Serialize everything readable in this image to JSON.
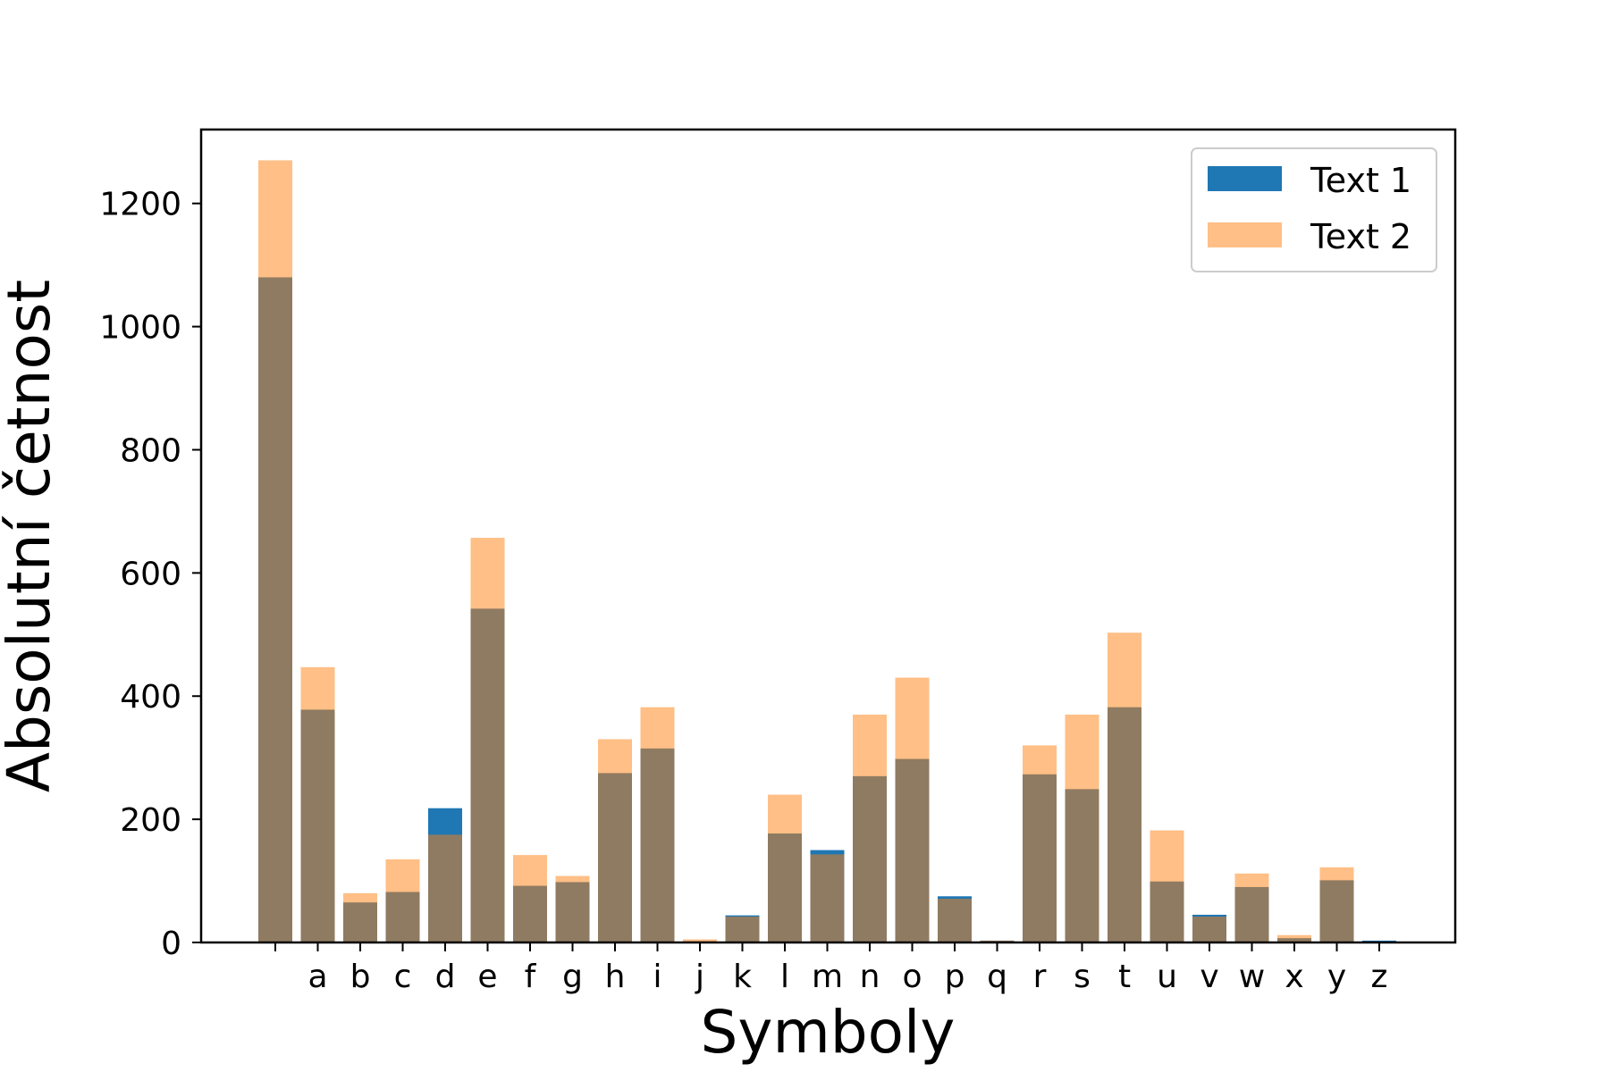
{
  "chart_data": {
    "type": "bar",
    "categories": [
      " ",
      "a",
      "b",
      "c",
      "d",
      "e",
      "f",
      "g",
      "h",
      "i",
      "j",
      "k",
      "l",
      "m",
      "n",
      "o",
      "p",
      "q",
      "r",
      "s",
      "t",
      "u",
      "v",
      "w",
      "x",
      "y",
      "z"
    ],
    "series": [
      {
        "name": "Text 1",
        "color": "#1f77b4",
        "opacity": 1,
        "values": [
          1080,
          378,
          65,
          82,
          218,
          542,
          92,
          98,
          275,
          315,
          2,
          44,
          177,
          150,
          270,
          298,
          75,
          3,
          273,
          249,
          382,
          99,
          45,
          90,
          7,
          101,
          3
        ]
      },
      {
        "name": "Text 2",
        "color": "#ff7f0e",
        "opacity": 0.5,
        "values": [
          1270,
          447,
          80,
          135,
          175,
          657,
          142,
          108,
          330,
          382,
          5,
          42,
          240,
          143,
          370,
          430,
          71,
          3,
          320,
          370,
          503,
          182,
          42,
          112,
          12,
          122,
          0
        ]
      }
    ],
    "xlabel": "Symboly",
    "ylabel": "Absolutní četnost",
    "title": "",
    "ylim": [
      0,
      1320
    ],
    "yticks": [
      0,
      200,
      400,
      600,
      800,
      1000,
      1200
    ],
    "grid": false,
    "legend_position": "top-right"
  }
}
